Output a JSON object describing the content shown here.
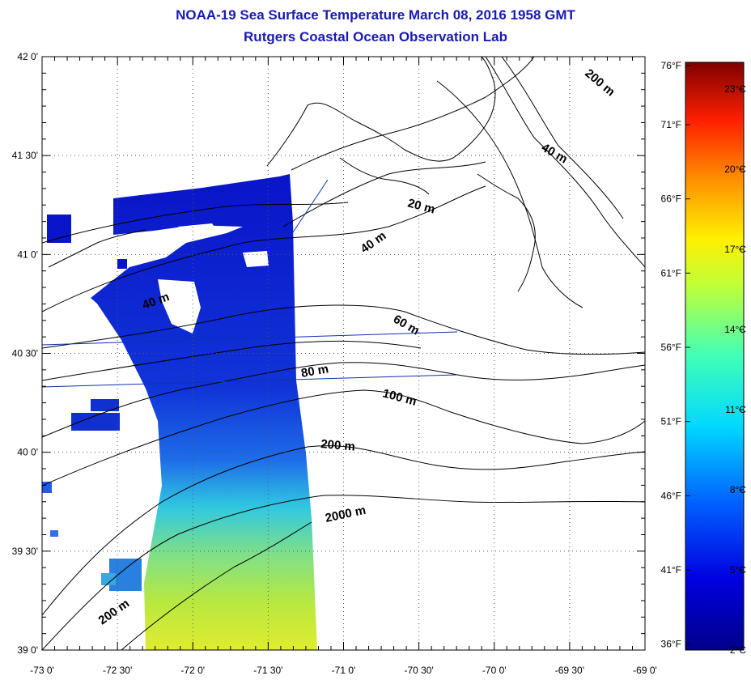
{
  "header": {
    "title": "NOAA-19 Sea Surface Temperature March 08, 2016 1958 GMT",
    "subtitle": "Rutgers Coastal Ocean Observation Lab"
  },
  "map": {
    "lat_labels": [
      "42 0'",
      "41 30'",
      "41 0'",
      "40 30'",
      "40 0'",
      "39 30'",
      "39 0'"
    ],
    "lon_labels": [
      "-73 0'",
      "-72 30'",
      "-72 0'",
      "-71 30'",
      "-71 0'",
      "-70 30'",
      "-70 0'",
      "-69 30'",
      "-69 0'"
    ],
    "lat_range": [
      39.0,
      42.0
    ],
    "lon_range": [
      -73.0,
      -69.0
    ],
    "grid": "dotted",
    "contour_labels": [
      "200 m",
      "40 m",
      "20 m",
      "40 m",
      "40 m",
      "60 m",
      "80 m",
      "100 m",
      "200 m",
      "2000 m",
      "200 m"
    ]
  },
  "colorbar": {
    "fahrenheit_labels": [
      "76°F",
      "71°F",
      "66°F",
      "61°F",
      "56°F",
      "51°F",
      "46°F",
      "41°F",
      "36°F"
    ],
    "celsius_labels": [
      "23°C",
      "20°C",
      "17°C",
      "14°C",
      "11°C",
      "8°C",
      "5°C",
      "2°C"
    ],
    "range_celsius": [
      2,
      24
    ]
  },
  "colors": {
    "title": "#1a1ab4",
    "cold": "#0a1aa8",
    "warm": "#e8e840"
  }
}
